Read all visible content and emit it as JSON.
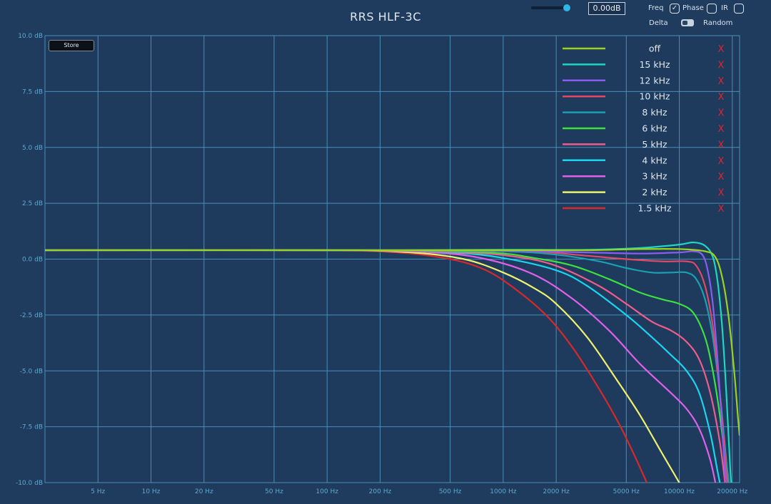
{
  "window": {
    "title": "RRS HLF-3C"
  },
  "controls": {
    "gain_value": "0.00dB",
    "slider_level": 0.9,
    "freq_label": "Freq",
    "phase_label": "Phase",
    "ir_label": "IR",
    "delta_label": "Delta",
    "random_label": "Random",
    "store_label": "Store",
    "freq_checked": true,
    "phase_checked": false,
    "ir_checked": false,
    "remove_glyph": "X"
  },
  "chart_data": {
    "type": "line",
    "title": "RRS HLF-3C",
    "x_scale": "log",
    "xlim": [
      2.5,
      22000
    ],
    "ylim": [
      -10,
      10
    ],
    "x_ticks": [
      {
        "value": 5,
        "label": "5 Hz"
      },
      {
        "value": 10,
        "label": "10 Hz"
      },
      {
        "value": 20,
        "label": "20 Hz"
      },
      {
        "value": 50,
        "label": "50 Hz"
      },
      {
        "value": 100,
        "label": "100 Hz"
      },
      {
        "value": 200,
        "label": "200 Hz"
      },
      {
        "value": 500,
        "label": "500 Hz"
      },
      {
        "value": 1000,
        "label": "1000 Hz"
      },
      {
        "value": 2000,
        "label": "2000 Hz"
      },
      {
        "value": 5000,
        "label": "5000 Hz"
      },
      {
        "value": 10000,
        "label": "10000 Hz"
      },
      {
        "value": 20000,
        "label": "20000 Hz"
      }
    ],
    "y_ticks": [
      {
        "value": 10,
        "label": "10.0 dB"
      },
      {
        "value": 7.5,
        "label": "7.5 dB"
      },
      {
        "value": 5,
        "label": "5.0 dB"
      },
      {
        "value": 2.5,
        "label": "2.5 dB"
      },
      {
        "value": 0,
        "label": "0.0 dB"
      },
      {
        "value": -2.5,
        "label": "-2.5 dB"
      },
      {
        "value": -5,
        "label": "-5.0 dB"
      },
      {
        "value": -7.5,
        "label": "-7.5 dB"
      },
      {
        "value": -10,
        "label": "-10.0 dB"
      }
    ],
    "grid": true,
    "legend_position": "top-right",
    "series": [
      {
        "name": "off",
        "color": "#9bd21f",
        "points": [
          [
            2.5,
            0.4
          ],
          [
            200,
            0.4
          ],
          [
            1000,
            0.4
          ],
          [
            3000,
            0.4
          ],
          [
            6000,
            0.45
          ],
          [
            10000,
            0.45
          ],
          [
            14000,
            0.35
          ],
          [
            16000,
            0.1
          ],
          [
            17500,
            -0.8
          ],
          [
            19000,
            -2.5
          ],
          [
            20500,
            -5.0
          ],
          [
            21500,
            -7.0
          ],
          [
            22000,
            -7.9
          ]
        ]
      },
      {
        "name": "15 kHz",
        "color": "#1fd6c0",
        "points": [
          [
            2.5,
            0.4
          ],
          [
            200,
            0.4
          ],
          [
            1000,
            0.42
          ],
          [
            3000,
            0.42
          ],
          [
            6000,
            0.5
          ],
          [
            10000,
            0.65
          ],
          [
            12000,
            0.75
          ],
          [
            14000,
            0.6
          ],
          [
            15500,
            0.1
          ],
          [
            16500,
            -1.0
          ],
          [
            17500,
            -3.0
          ],
          [
            18500,
            -6.0
          ],
          [
            19500,
            -9.5
          ],
          [
            20000,
            -10.5
          ]
        ]
      },
      {
        "name": "12 kHz",
        "color": "#8a5cf0",
        "points": [
          [
            2.5,
            0.4
          ],
          [
            200,
            0.4
          ],
          [
            1000,
            0.38
          ],
          [
            3000,
            0.3
          ],
          [
            6000,
            0.25
          ],
          [
            10000,
            0.3
          ],
          [
            12000,
            0.35
          ],
          [
            13500,
            0.2
          ],
          [
            14500,
            -0.5
          ],
          [
            15500,
            -2.0
          ],
          [
            16500,
            -4.5
          ],
          [
            17500,
            -7.5
          ],
          [
            18500,
            -10.5
          ]
        ]
      },
      {
        "name": "10 kHz",
        "color": "#e04a68",
        "points": [
          [
            2.5,
            0.4
          ],
          [
            200,
            0.4
          ],
          [
            800,
            0.38
          ],
          [
            1500,
            0.35
          ],
          [
            3000,
            0.15
          ],
          [
            5000,
            0.0
          ],
          [
            8000,
            -0.1
          ],
          [
            11000,
            -0.1
          ],
          [
            12500,
            -0.3
          ],
          [
            14000,
            -1.2
          ],
          [
            15500,
            -3.0
          ],
          [
            17000,
            -6.0
          ],
          [
            18500,
            -9.5
          ],
          [
            19000,
            -10.5
          ]
        ]
      },
      {
        "name": "8 kHz",
        "color": "#1aa0b0",
        "points": [
          [
            2.5,
            0.4
          ],
          [
            200,
            0.4
          ],
          [
            1000,
            0.35
          ],
          [
            2000,
            0.2
          ],
          [
            3500,
            -0.1
          ],
          [
            5000,
            -0.4
          ],
          [
            7000,
            -0.6
          ],
          [
            9000,
            -0.6
          ],
          [
            11000,
            -0.6
          ],
          [
            12500,
            -0.9
          ],
          [
            14000,
            -1.8
          ],
          [
            15500,
            -3.5
          ],
          [
            17000,
            -6.0
          ],
          [
            18500,
            -9.0
          ],
          [
            19500,
            -10.5
          ]
        ]
      },
      {
        "name": "6 kHz",
        "color": "#3ee040",
        "points": [
          [
            2.5,
            0.4
          ],
          [
            150,
            0.4
          ],
          [
            800,
            0.3
          ],
          [
            1500,
            0.05
          ],
          [
            2500,
            -0.3
          ],
          [
            4000,
            -0.9
          ],
          [
            6000,
            -1.5
          ],
          [
            8000,
            -1.8
          ],
          [
            10000,
            -2.0
          ],
          [
            12000,
            -2.4
          ],
          [
            14000,
            -3.5
          ],
          [
            15500,
            -5.0
          ],
          [
            17000,
            -7.0
          ],
          [
            18500,
            -9.5
          ],
          [
            19000,
            -10.5
          ]
        ]
      },
      {
        "name": "5 kHz",
        "color": "#f05c8c",
        "points": [
          [
            2.5,
            0.4
          ],
          [
            150,
            0.4
          ],
          [
            600,
            0.3
          ],
          [
            1200,
            0.1
          ],
          [
            2000,
            -0.3
          ],
          [
            3500,
            -1.2
          ],
          [
            5000,
            -2.0
          ],
          [
            7000,
            -2.8
          ],
          [
            9000,
            -3.2
          ],
          [
            11000,
            -3.7
          ],
          [
            13000,
            -4.5
          ],
          [
            15000,
            -6.0
          ],
          [
            17000,
            -8.2
          ],
          [
            18500,
            -10.5
          ]
        ]
      },
      {
        "name": "4 kHz",
        "color": "#1ad4f0",
        "points": [
          [
            2.5,
            0.4
          ],
          [
            150,
            0.4
          ],
          [
            500,
            0.3
          ],
          [
            1000,
            0.05
          ],
          [
            2000,
            -0.5
          ],
          [
            3000,
            -1.2
          ],
          [
            5000,
            -2.5
          ],
          [
            7000,
            -3.5
          ],
          [
            9000,
            -4.3
          ],
          [
            11000,
            -5.0
          ],
          [
            13000,
            -6.0
          ],
          [
            15000,
            -7.8
          ],
          [
            16500,
            -9.5
          ],
          [
            17500,
            -10.5
          ]
        ]
      },
      {
        "name": "3 kHz",
        "color": "#e060e8",
        "points": [
          [
            2.5,
            0.4
          ],
          [
            120,
            0.4
          ],
          [
            400,
            0.3
          ],
          [
            800,
            0.0
          ],
          [
            1500,
            -0.7
          ],
          [
            2500,
            -1.8
          ],
          [
            4000,
            -3.2
          ],
          [
            6000,
            -4.7
          ],
          [
            9000,
            -6.0
          ],
          [
            11000,
            -6.7
          ],
          [
            13000,
            -7.6
          ],
          [
            15000,
            -9.0
          ],
          [
            16500,
            -10.5
          ]
        ]
      },
      {
        "name": "2 kHz",
        "color": "#f0f070",
        "points": [
          [
            2.5,
            0.4
          ],
          [
            100,
            0.4
          ],
          [
            300,
            0.3
          ],
          [
            600,
            0.0
          ],
          [
            1000,
            -0.6
          ],
          [
            1500,
            -1.3
          ],
          [
            2000,
            -2.0
          ],
          [
            3000,
            -3.5
          ],
          [
            4500,
            -5.5
          ],
          [
            6000,
            -7.0
          ],
          [
            8000,
            -8.7
          ],
          [
            10000,
            -10.0
          ],
          [
            10500,
            -10.3
          ]
        ]
      },
      {
        "name": "1.5 kHz",
        "color": "#d8282c",
        "points": [
          [
            2.5,
            0.4
          ],
          [
            80,
            0.4
          ],
          [
            250,
            0.3
          ],
          [
            500,
            0.0
          ],
          [
            800,
            -0.5
          ],
          [
            1200,
            -1.4
          ],
          [
            1800,
            -2.6
          ],
          [
            2500,
            -4.0
          ],
          [
            3500,
            -5.8
          ],
          [
            4500,
            -7.3
          ],
          [
            5500,
            -8.7
          ],
          [
            6800,
            -10.3
          ]
        ]
      }
    ]
  }
}
